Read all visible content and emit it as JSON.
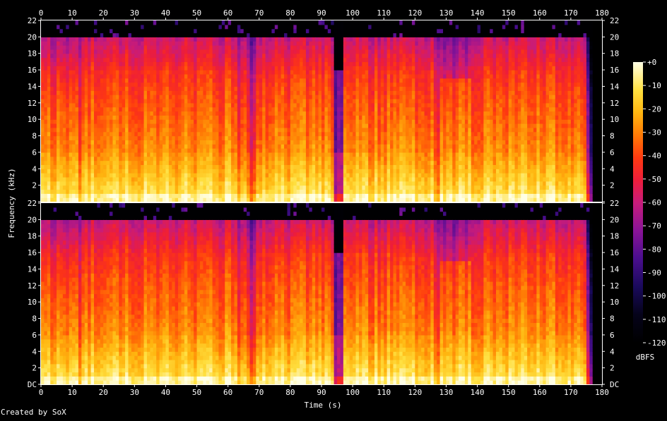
{
  "credit": "Created by SoX",
  "chart_data": {
    "type": "heatmap",
    "title": "",
    "xlabel": "Time (s)",
    "ylabel": "Frequency (kHz)",
    "xlim": [
      0,
      180
    ],
    "x_ticks": [
      "0",
      "10",
      "20",
      "30",
      "40",
      "50",
      "60",
      "70",
      "80",
      "90",
      "100",
      "110",
      "120",
      "130",
      "140",
      "150",
      "160",
      "170",
      "180"
    ],
    "ylim_khz": [
      0,
      22
    ],
    "y_ticks": [
      "DC",
      "2",
      "4",
      "6",
      "8",
      "10",
      "12",
      "14",
      "16",
      "18",
      "20",
      "22"
    ],
    "channels": [
      {
        "name": "",
        "cutoff_khz": 20
      },
      {
        "name": "",
        "cutoff_khz": 20
      }
    ],
    "colorbar": {
      "label": "dBFS",
      "range": [
        -120,
        0
      ],
      "ticks": [
        "+0",
        "-10",
        "-20",
        "-30",
        "-40",
        "-50",
        "-60",
        "-70",
        "-80",
        "-90",
        "-100",
        "-110",
        "-120"
      ]
    },
    "audio_end_s": 177,
    "silence_gaps_s": [
      [
        94,
        96.5
      ]
    ],
    "transients_s": [
      12.5,
      68,
      95,
      127
    ]
  }
}
